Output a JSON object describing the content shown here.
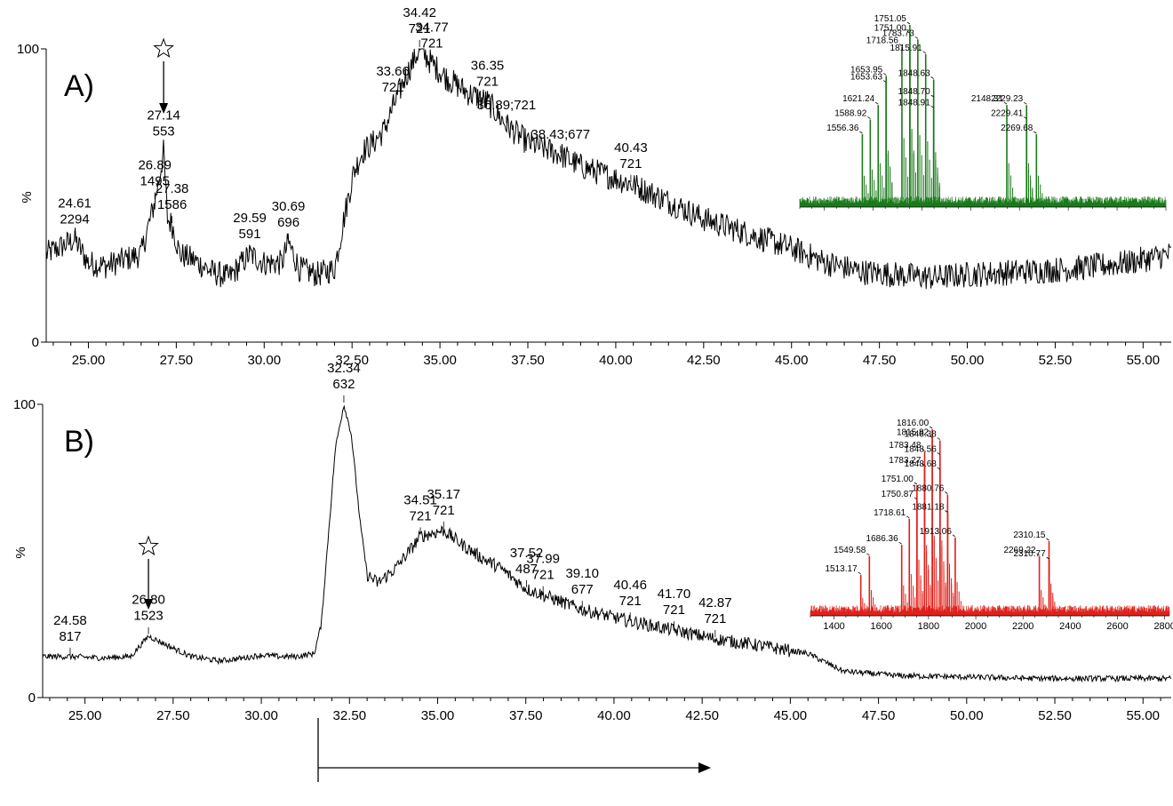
{
  "chart_data": [
    {
      "type": "line",
      "panel_label": "A)",
      "ylabel": "%",
      "yticks": [
        "0",
        "100"
      ],
      "ylim": [
        0,
        100
      ],
      "xlim": [
        23.8,
        55.8
      ],
      "xticks": [
        "25.00",
        "27.50",
        "30.00",
        "32.50",
        "35.00",
        "37.50",
        "40.00",
        "42.50",
        "45.00",
        "47.50",
        "50.00",
        "52.50",
        "55.00"
      ],
      "trace_anchors": [
        [
          23.8,
          30
        ],
        [
          24.3,
          33
        ],
        [
          24.61,
          35
        ],
        [
          25.0,
          27
        ],
        [
          25.5,
          26
        ],
        [
          26.0,
          28
        ],
        [
          26.5,
          30
        ],
        [
          26.89,
          48
        ],
        [
          27.0,
          55
        ],
        [
          27.14,
          65
        ],
        [
          27.25,
          42
        ],
        [
          27.38,
          40
        ],
        [
          27.6,
          30
        ],
        [
          28.0,
          28
        ],
        [
          28.5,
          24
        ],
        [
          29.0,
          22
        ],
        [
          29.59,
          30
        ],
        [
          30.0,
          27
        ],
        [
          30.5,
          27
        ],
        [
          30.69,
          34
        ],
        [
          31.0,
          25
        ],
        [
          31.5,
          23
        ],
        [
          32.0,
          25
        ],
        [
          32.3,
          44
        ],
        [
          32.55,
          58
        ],
        [
          32.8,
          65
        ],
        [
          33.1,
          68
        ],
        [
          33.4,
          72
        ],
        [
          33.66,
          80
        ],
        [
          34.0,
          90
        ],
        [
          34.42,
          100
        ],
        [
          34.77,
          95
        ],
        [
          35.2,
          90
        ],
        [
          35.8,
          85
        ],
        [
          36.35,
          82
        ],
        [
          36.89,
          74
        ],
        [
          37.5,
          68
        ],
        [
          38.43,
          64
        ],
        [
          39.0,
          60
        ],
        [
          40.43,
          54
        ],
        [
          41.5,
          48
        ],
        [
          42.5,
          42
        ],
        [
          43.5,
          38
        ],
        [
          45.0,
          32
        ],
        [
          46.0,
          27
        ],
        [
          47.0,
          24
        ],
        [
          48.0,
          23
        ],
        [
          49.0,
          22
        ],
        [
          50.0,
          23
        ],
        [
          51.5,
          24
        ],
        [
          53.0,
          25
        ],
        [
          54.5,
          27
        ],
        [
          55.8,
          30
        ]
      ],
      "peaks": [
        {
          "x": 24.61,
          "y": 35,
          "time": "24.61",
          "mass": "2294"
        },
        {
          "x": 26.89,
          "y": 48,
          "time": "26.89",
          "mass": "1495"
        },
        {
          "x": 27.14,
          "y": 65,
          "time": "27.14",
          "mass": "553"
        },
        {
          "x": 27.38,
          "y": 40,
          "time": "27.38",
          "mass": "1586"
        },
        {
          "x": 29.59,
          "y": 30,
          "time": "29.59",
          "mass": "591"
        },
        {
          "x": 30.69,
          "y": 34,
          "time": "30.69",
          "mass": "696"
        },
        {
          "x": 33.66,
          "y": 80,
          "time": "33.66",
          "mass": "721"
        },
        {
          "x": 34.42,
          "y": 100,
          "time": "34.42",
          "mass": "721"
        },
        {
          "x": 34.77,
          "y": 95,
          "time": "34.77",
          "mass": "721"
        },
        {
          "x": 36.35,
          "y": 82,
          "time": "36.35",
          "mass": "721"
        },
        {
          "x": 36.89,
          "y": 74,
          "time": "36.89;721",
          "mass": ""
        },
        {
          "x": 38.43,
          "y": 64,
          "time": "38.43;677",
          "mass": ""
        },
        {
          "x": 40.43,
          "y": 54,
          "time": "40.43",
          "mass": "721"
        }
      ],
      "star_x": 27.14,
      "inset": {
        "color": "#1a7a1a",
        "xlim": [
          1300,
          2800
        ],
        "tick_labels": [],
        "peaks": [
          {
            "x": 1556.36,
            "y": 0.4,
            "label": "1556.36"
          },
          {
            "x": 1588.92,
            "y": 0.48,
            "label": "1588.92"
          },
          {
            "x": 1621.24,
            "y": 0.56,
            "label": "1621.24"
          },
          {
            "x": 1653.63,
            "y": 0.68,
            "label": "1653.63"
          },
          {
            "x": 1653.95,
            "y": 0.72,
            "label": "1653.95"
          },
          {
            "x": 1718.56,
            "y": 0.88,
            "label": "1718.56"
          },
          {
            "x": 1751.0,
            "y": 0.95,
            "label": "1751.00"
          },
          {
            "x": 1751.05,
            "y": 1.0,
            "label": "1751.05"
          },
          {
            "x": 1783.73,
            "y": 0.92,
            "label": "1783.73"
          },
          {
            "x": 1815.91,
            "y": 0.84,
            "label": "1815.91"
          },
          {
            "x": 1848.63,
            "y": 0.7,
            "label": "1848.63"
          },
          {
            "x": 1848.7,
            "y": 0.6,
            "label": "1848.70"
          },
          {
            "x": 1848.91,
            "y": 0.54,
            "label": "1848.91"
          },
          {
            "x": 2148.31,
            "y": 0.56,
            "label": "2148.31"
          },
          {
            "x": 2229.23,
            "y": 0.56,
            "label": "2229.23"
          },
          {
            "x": 2229.41,
            "y": 0.48,
            "label": "2229.41"
          },
          {
            "x": 2269.68,
            "y": 0.4,
            "label": "2269.68"
          }
        ]
      }
    },
    {
      "type": "line",
      "panel_label": "B)",
      "ylabel": "%",
      "yticks": [
        "0",
        "100"
      ],
      "ylim": [
        0,
        100
      ],
      "xlim": [
        23.8,
        55.8
      ],
      "xticks": [
        "25.00",
        "27.50",
        "30.00",
        "32.50",
        "35.00",
        "37.50",
        "40.00",
        "42.50",
        "45.00",
        "47.50",
        "50.00",
        "52.50",
        "55.00"
      ],
      "trace_anchors": [
        [
          23.8,
          14
        ],
        [
          24.58,
          14
        ],
        [
          25.5,
          13.5
        ],
        [
          26.3,
          14
        ],
        [
          26.8,
          21
        ],
        [
          27.3,
          18
        ],
        [
          28.0,
          14
        ],
        [
          28.8,
          12.5
        ],
        [
          29.5,
          13.5
        ],
        [
          30.0,
          14.5
        ],
        [
          30.5,
          14
        ],
        [
          31.0,
          14
        ],
        [
          31.5,
          15
        ],
        [
          31.7,
          25
        ],
        [
          31.9,
          55
        ],
        [
          32.1,
          85
        ],
        [
          32.34,
          100
        ],
        [
          32.55,
          90
        ],
        [
          32.8,
          60
        ],
        [
          33.0,
          42
        ],
        [
          33.3,
          39
        ],
        [
          33.8,
          44
        ],
        [
          34.2,
          50
        ],
        [
          34.51,
          55
        ],
        [
          35.17,
          57
        ],
        [
          35.6,
          53
        ],
        [
          36.2,
          48
        ],
        [
          36.8,
          44
        ],
        [
          37.52,
          37
        ],
        [
          37.99,
          35
        ],
        [
          39.1,
          30
        ],
        [
          40.46,
          26
        ],
        [
          41.7,
          23
        ],
        [
          42.87,
          20
        ],
        [
          44.0,
          18
        ],
        [
          45.5,
          15
        ],
        [
          46.5,
          9
        ],
        [
          48.0,
          7.5
        ],
        [
          50.0,
          7
        ],
        [
          52.0,
          6.5
        ],
        [
          55.8,
          6.5
        ]
      ],
      "peaks": [
        {
          "x": 24.58,
          "y": 14,
          "time": "24.58",
          "mass": "817"
        },
        {
          "x": 26.8,
          "y": 21,
          "time": "26.80",
          "mass": "1523"
        },
        {
          "x": 32.34,
          "y": 100,
          "time": "32.34",
          "mass": "632"
        },
        {
          "x": 34.51,
          "y": 55,
          "time": "34.51",
          "mass": "721"
        },
        {
          "x": 35.17,
          "y": 57,
          "time": "35.17",
          "mass": "721"
        },
        {
          "x": 37.52,
          "y": 37,
          "time": "37.52",
          "mass": "487"
        },
        {
          "x": 37.99,
          "y": 35,
          "time": "37.99",
          "mass": "721"
        },
        {
          "x": 39.1,
          "y": 30,
          "time": "39.10",
          "mass": "677"
        },
        {
          "x": 40.46,
          "y": 26,
          "time": "40.46",
          "mass": "721"
        },
        {
          "x": 41.7,
          "y": 23,
          "time": "41.70",
          "mass": "721"
        },
        {
          "x": 42.87,
          "y": 20,
          "time": "42.87",
          "mass": "721"
        }
      ],
      "star_x": 26.8,
      "inset": {
        "color": "#e0201a",
        "xlim": [
          1300,
          2820
        ],
        "tick_labels": [
          "1400",
          "1600",
          "1800",
          "2000",
          "2200",
          "2400",
          "2600",
          "2800"
        ],
        "peaks": [
          {
            "x": 1513.17,
            "y": 0.22,
            "label": "1513.17"
          },
          {
            "x": 1549.58,
            "y": 0.32,
            "label": "1549.58"
          },
          {
            "x": 1686.36,
            "y": 0.38,
            "label": "1686.36"
          },
          {
            "x": 1718.61,
            "y": 0.52,
            "label": "1718.61"
          },
          {
            "x": 1750.87,
            "y": 0.62,
            "label": "1750.87"
          },
          {
            "x": 1751.0,
            "y": 0.7,
            "label": "1751.00"
          },
          {
            "x": 1783.27,
            "y": 0.8,
            "label": "1783.27"
          },
          {
            "x": 1783.48,
            "y": 0.88,
            "label": "1783.48"
          },
          {
            "x": 1815.82,
            "y": 0.95,
            "label": "1815.82"
          },
          {
            "x": 1816.0,
            "y": 1.0,
            "label": "1816.00"
          },
          {
            "x": 1848.38,
            "y": 0.94,
            "label": "1848.38"
          },
          {
            "x": 1848.56,
            "y": 0.86,
            "label": "1848.56"
          },
          {
            "x": 1848.68,
            "y": 0.78,
            "label": "1848.68"
          },
          {
            "x": 1880.76,
            "y": 0.65,
            "label": "1880.76"
          },
          {
            "x": 1881.18,
            "y": 0.55,
            "label": "1881.18"
          },
          {
            "x": 1913.06,
            "y": 0.42,
            "label": "1913.06"
          },
          {
            "x": 2269.22,
            "y": 0.32,
            "label": "2269.22"
          },
          {
            "x": 2310.15,
            "y": 0.4,
            "label": "2310.15"
          },
          {
            "x": 2310.77,
            "y": 0.3,
            "label": "2310.77"
          }
        ]
      }
    }
  ]
}
